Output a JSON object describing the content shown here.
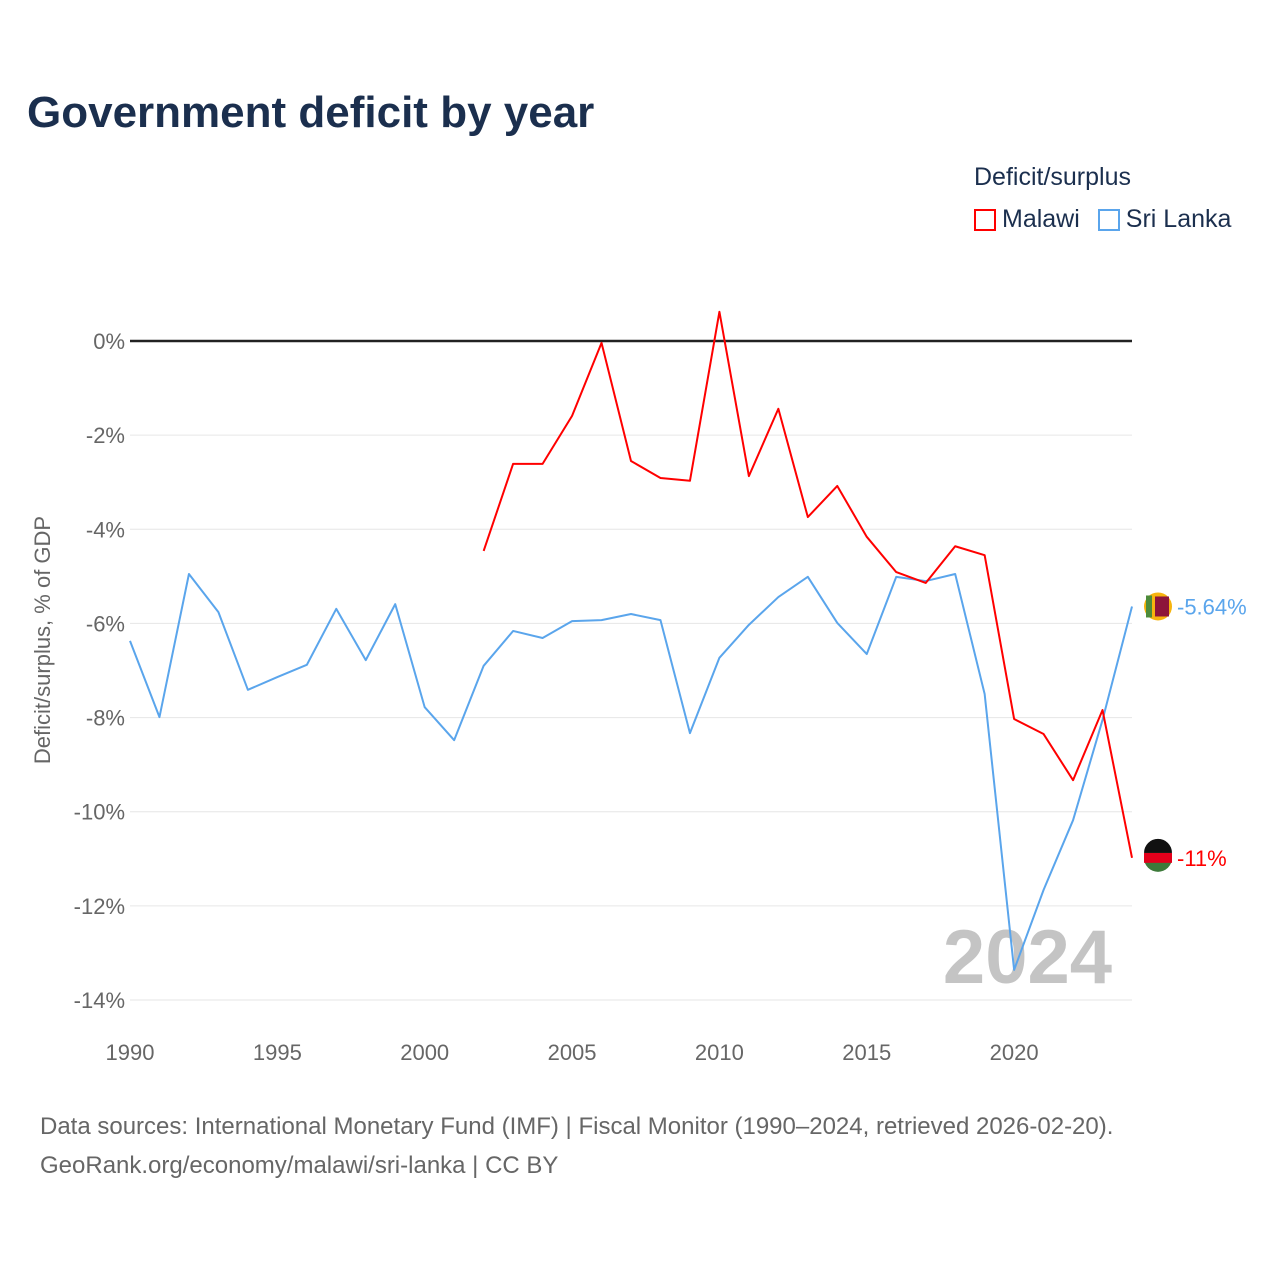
{
  "chart_data": {
    "type": "line",
    "title": "Government deficit by year",
    "ylabel": "Deficit/surplus, % of GDP",
    "xlabel": "",
    "ylim": [
      -14,
      0
    ],
    "xlim": [
      1990,
      2024
    ],
    "yticks": [
      0,
      -2,
      -4,
      -6,
      -8,
      -10,
      -12,
      -14
    ],
    "ytick_labels": [
      "0%",
      "-2%",
      "-4%",
      "-6%",
      "-8%",
      "-10%",
      "-12%",
      "-14%"
    ],
    "xticks": [
      1990,
      1995,
      2000,
      2005,
      2010,
      2015,
      2020
    ],
    "xtick_labels": [
      "1990",
      "1995",
      "2000",
      "2005",
      "2010",
      "2015",
      "2020"
    ],
    "legend_title": "Deficit/surplus",
    "legend_position": "top-right",
    "year_watermark": "2024",
    "series": [
      {
        "name": "Malawi",
        "color": "#ff0000",
        "end_label": "-11%",
        "x": [
          2002,
          2003,
          2004,
          2005,
          2006,
          2007,
          2008,
          2009,
          2010,
          2011,
          2012,
          2013,
          2014,
          2015,
          2016,
          2017,
          2018,
          2019,
          2020,
          2021,
          2022,
          2023,
          2024
        ],
        "values": [
          -4.46,
          -2.61,
          -2.61,
          -1.59,
          -0.04,
          -2.55,
          -2.91,
          -2.97,
          0.62,
          -2.87,
          -1.44,
          -3.74,
          -3.08,
          -4.16,
          -4.91,
          -5.14,
          -4.36,
          -4.55,
          -8.03,
          -8.35,
          -9.33,
          -7.84,
          -10.98
        ]
      },
      {
        "name": "Sri Lanka",
        "color": "#5aa5ec",
        "end_label": "-5.64%",
        "x": [
          1990,
          1991,
          1992,
          1993,
          1994,
          1995,
          1996,
          1997,
          1998,
          1999,
          2000,
          2001,
          2002,
          2003,
          2004,
          2005,
          2006,
          2007,
          2008,
          2009,
          2010,
          2011,
          2012,
          2013,
          2014,
          2015,
          2016,
          2017,
          2018,
          2019,
          2020,
          2021,
          2022,
          2023,
          2024
        ],
        "values": [
          -6.37,
          -7.99,
          -4.95,
          -5.76,
          -7.41,
          -7.14,
          -6.88,
          -5.69,
          -6.78,
          -5.59,
          -7.78,
          -8.48,
          -6.9,
          -6.16,
          -6.31,
          -5.95,
          -5.93,
          -5.8,
          -5.93,
          -8.33,
          -6.73,
          -6.03,
          -5.44,
          -5.01,
          -5.99,
          -6.65,
          -5.01,
          -5.1,
          -4.95,
          -7.5,
          -13.36,
          -11.66,
          -10.18,
          -8.05,
          -5.64
        ]
      }
    ]
  },
  "footer": {
    "sources": "Data sources: International Monetary Fund (IMF) | Fiscal Monitor (1990–2024, retrieved 2026-02-20).",
    "credit": "GeoRank.org/economy/malawi/sri-lanka | CC BY"
  }
}
